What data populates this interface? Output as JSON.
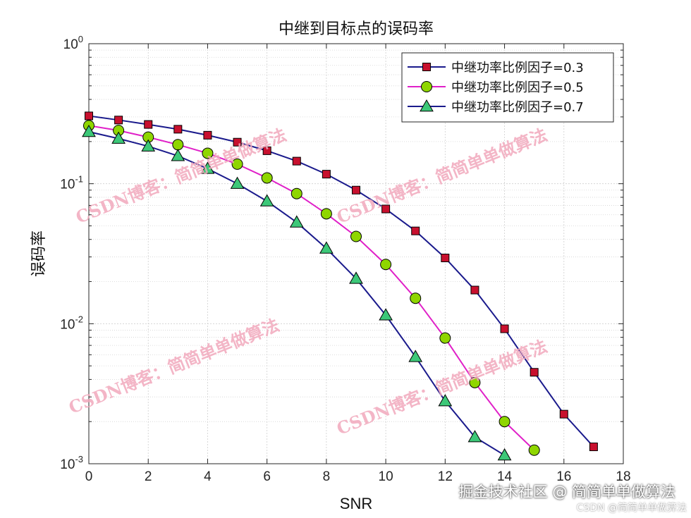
{
  "chart_data": {
    "type": "line",
    "title": "中继到目标点的误码率",
    "xlabel": "SNR",
    "ylabel": "误码率",
    "xlim": [
      0,
      18
    ],
    "ylim": [
      0.001,
      1
    ],
    "yscale": "log",
    "grid": true,
    "minor_grid": true,
    "legend_position": "top-right",
    "x_ticks": [
      "0",
      "2",
      "4",
      "6",
      "8",
      "10",
      "12",
      "14",
      "16",
      "18"
    ],
    "y_ticks": [
      {
        "base": "10",
        "exp": "-3",
        "value": 0.001
      },
      {
        "base": "10",
        "exp": "-2",
        "value": 0.01
      },
      {
        "base": "10",
        "exp": "-1",
        "value": 0.1
      },
      {
        "base": "10",
        "exp": "0",
        "value": 1
      }
    ],
    "series": [
      {
        "name": "中继功率比例因子=0.3",
        "color": "#1a1a8c",
        "marker": "square",
        "marker_fill": "#c8102e",
        "x": [
          0,
          1,
          2,
          3,
          4,
          5,
          6,
          7,
          8,
          9,
          10,
          11,
          12,
          13,
          14,
          15,
          16,
          17
        ],
        "y": [
          0.305,
          0.285,
          0.265,
          0.245,
          0.222,
          0.198,
          0.172,
          0.145,
          0.117,
          0.09,
          0.066,
          0.046,
          0.0295,
          0.0174,
          0.0092,
          0.0045,
          0.00226,
          0.00132
        ]
      },
      {
        "name": "中继功率比例因子=0.5",
        "color": "#e020c8",
        "marker": "circle",
        "marker_fill": "#8fd600",
        "x": [
          0,
          1,
          2,
          3,
          4,
          5,
          6,
          7,
          8,
          9,
          10,
          11,
          12,
          13,
          14,
          15
        ],
        "y": [
          0.26,
          0.24,
          0.215,
          0.19,
          0.165,
          0.138,
          0.11,
          0.085,
          0.061,
          0.042,
          0.0265,
          0.0152,
          0.0079,
          0.0038,
          0.002,
          0.00125
        ]
      },
      {
        "name": "中继功率比例因子=0.7",
        "color": "#1a1a8c",
        "marker": "triangle",
        "marker_fill": "#3cc878",
        "x": [
          0,
          1,
          2,
          3,
          4,
          5,
          6,
          7,
          8,
          9,
          10,
          11,
          12,
          13,
          14
        ],
        "y": [
          0.235,
          0.21,
          0.185,
          0.158,
          0.128,
          0.1,
          0.075,
          0.053,
          0.0345,
          0.021,
          0.0115,
          0.0058,
          0.0028,
          0.00155,
          0.00115
        ]
      }
    ]
  },
  "watermark": "CSDN博客：简简单单做算法",
  "footer": {
    "line1": "掘金技术社区 @ 简简单单做算法",
    "line2": "CSDN @简简单单做算法"
  }
}
